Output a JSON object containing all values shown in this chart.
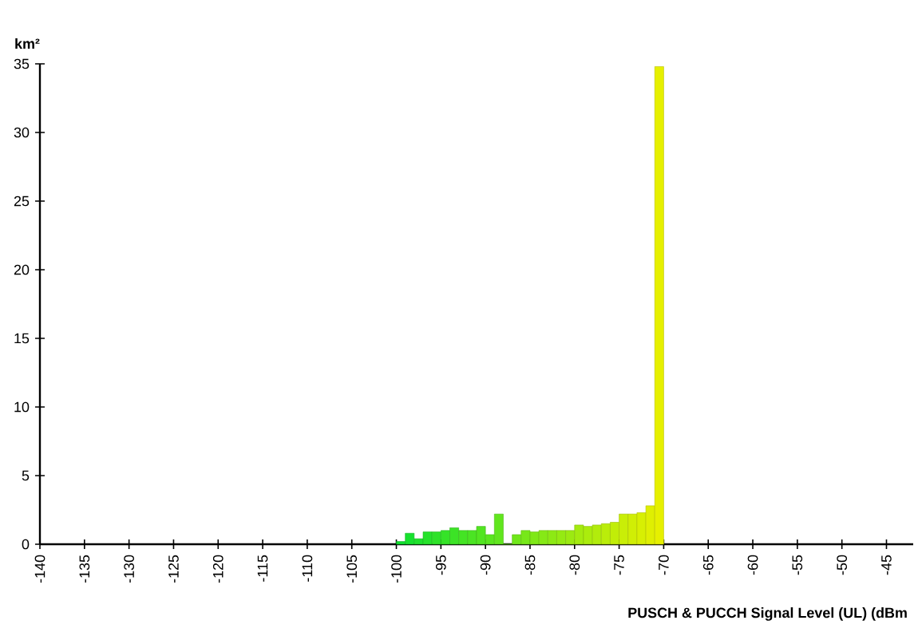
{
  "chart_data": {
    "type": "histogram",
    "ylabel": "km²",
    "xlabel": "PUSCH & PUCCH Signal Level (UL) (dBm",
    "bins": [
      -100,
      -99,
      -98,
      -97,
      -96,
      -95,
      -94,
      -93,
      -92,
      -91,
      -90,
      -89,
      -88,
      -87,
      -86,
      -85,
      -84,
      -83,
      -82,
      -81,
      -80,
      -79,
      -78,
      -77,
      -76,
      -75,
      -74,
      -73,
      -72,
      -71,
      -70
    ],
    "values": [
      0.2,
      0.8,
      0.4,
      0.9,
      0.9,
      1.0,
      1.2,
      1.0,
      1.0,
      1.3,
      0.7,
      2.2,
      0,
      0.7,
      1.0,
      0.9,
      1.0,
      1.0,
      1.0,
      1.0,
      1.4,
      1.3,
      1.4,
      1.5,
      1.6,
      2.2,
      2.2,
      2.3,
      2.8,
      34.8
    ],
    "colors": [
      "#10e030",
      "#17e12e",
      "#1fe12d",
      "#26e22b",
      "#2ee229",
      "#35e328",
      "#3ce326",
      "#44e424",
      "#4be423",
      "#52e521",
      "#5ae61f",
      "#61e61e",
      "#69e71c",
      "#70e71a",
      "#77e819",
      "#7fe817",
      "#86e916",
      "#8de914",
      "#95ea12",
      "#9cea11",
      "#a4eb0f",
      "#abec0d",
      "#b2ec0c",
      "#baed0a",
      "#c1ed08",
      "#c9ee07",
      "#d0ee05",
      "#d7ef03",
      "#dfef02",
      "#e6f000"
    ],
    "xlim": [
      -140,
      -42
    ],
    "ylim": [
      0,
      35
    ],
    "xticks": [
      -140,
      -135,
      -130,
      -125,
      -120,
      -115,
      -110,
      -105,
      -100,
      -95,
      -90,
      -85,
      -80,
      -75,
      -70,
      -65,
      -60,
      -55,
      -50,
      -45
    ],
    "yticks": [
      0,
      5,
      10,
      15,
      20,
      25,
      30,
      35
    ],
    "grid": false
  }
}
